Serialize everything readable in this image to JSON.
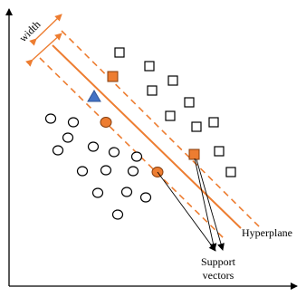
{
  "labels": {
    "width": "width",
    "hyperplane": "Hyperplane",
    "support_line1": "Support",
    "support_line2": "vectors"
  },
  "colors": {
    "axis": "#000000",
    "hyperplane": "#ed7d31",
    "margin_dashed": "#ed7d31",
    "support_fill": "#ed7d31",
    "support_stroke": "#843c0c",
    "outlier_fill": "#4472c4",
    "outlier_stroke": "#2f5597",
    "class_stroke": "#000000",
    "class_fill": "#ffffff"
  },
  "icons": {
    "class_a_marker": "circle-icon",
    "class_b_marker": "square-icon",
    "outlier_marker": "triangle-icon",
    "support_marker_a": "filled-circle-icon",
    "support_marker_b": "filled-square-icon"
  }
}
